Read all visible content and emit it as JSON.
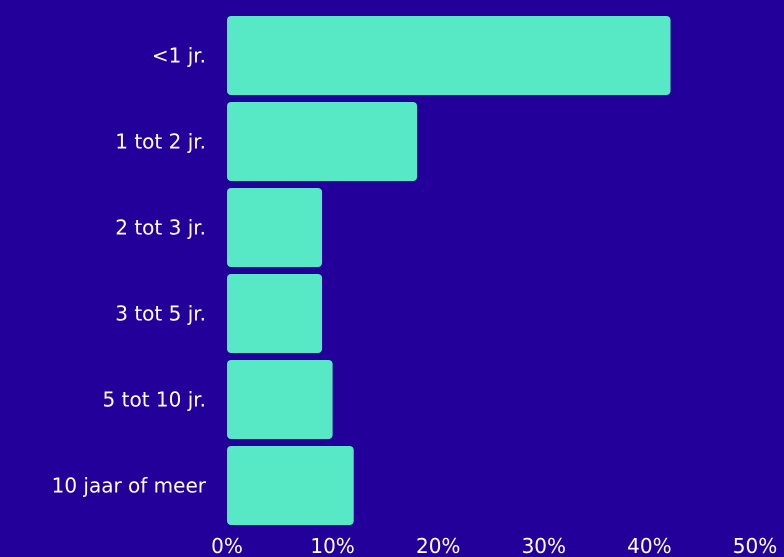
{
  "colors": {
    "background": "#24009a",
    "bar": "#57e8c5",
    "text": "#ffffff"
  },
  "chart_data": {
    "type": "bar",
    "orientation": "horizontal",
    "categories": [
      "<1 jr.",
      "1 tot 2 jr.",
      "2 tot 3 jr.",
      "3 tot 5 jr.",
      "5 tot 10 jr.",
      "10 jaar of meer"
    ],
    "values": [
      42,
      18,
      9,
      9,
      10,
      12
    ],
    "unit": "%",
    "xlim": [
      0,
      50
    ],
    "xticks": [
      0,
      10,
      20,
      30,
      40,
      50
    ],
    "xtick_labels": [
      "0%",
      "10%",
      "20%",
      "30%",
      "40%",
      "50%"
    ],
    "title": "",
    "xlabel": "",
    "ylabel": "",
    "grid": false,
    "legend": "none"
  }
}
